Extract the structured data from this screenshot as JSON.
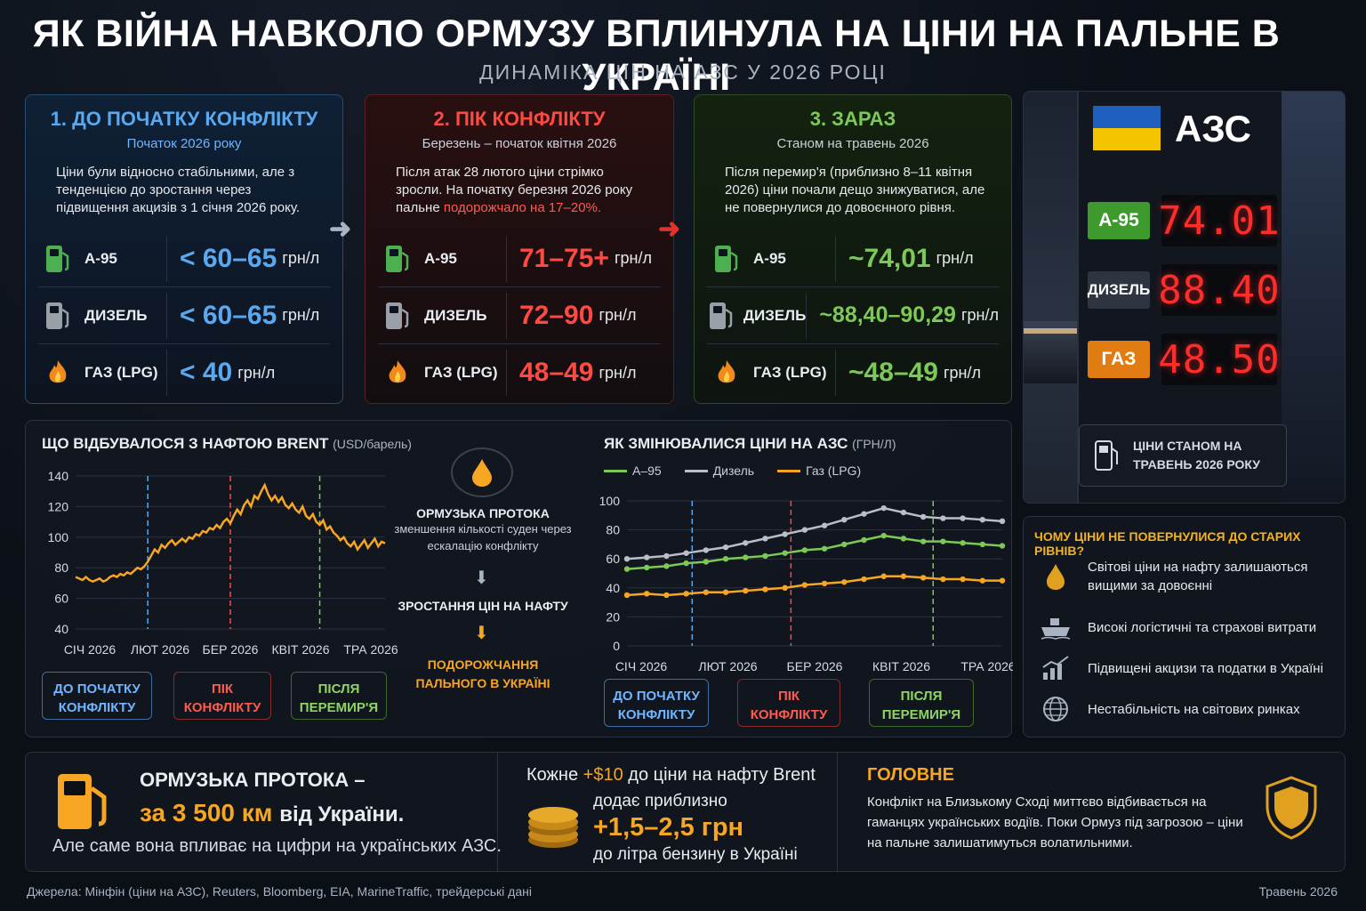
{
  "title": "ЯК ВІЙНА НАВКОЛО ОРМУЗУ ВПЛИНУЛА НА ЦІНИ НА ПАЛЬНЕ В УКРАЇНІ",
  "subtitle": "ДИНАМІКА ЦІН НА АЗС У 2026 РОЦІ",
  "stages": [
    {
      "heading": "1. ДО ПОЧАТКУ КОНФЛІКТУ",
      "period": "Початок 2026 року",
      "desc": "Ціни були відносно стабільними, але з тенденцією до зростання через підвищення акцизів з 1 січня 2026 року.",
      "desc_highlight": "",
      "fuels": [
        {
          "label": "А-95",
          "value": "< 60–65",
          "unit": "грн/л"
        },
        {
          "label": "ДИЗЕЛЬ",
          "value": "< 60–65",
          "unit": "грн/л"
        },
        {
          "label": "ГАЗ (LPG)",
          "value": "< 40",
          "unit": "грн/л"
        }
      ]
    },
    {
      "heading": "2. ПІК КОНФЛІКТУ",
      "period": "Березень – початок квітня 2026",
      "desc": "Після атак 28 лютого ціни стрімко зросли. На початку березня 2026 року пальне",
      "desc_highlight": "подорожчало на 17–20%.",
      "fuels": [
        {
          "label": "А-95",
          "value": "71–75+",
          "unit": "грн/л"
        },
        {
          "label": "ДИЗЕЛЬ",
          "value": "72–90",
          "unit": "грн/л"
        },
        {
          "label": "ГАЗ (LPG)",
          "value": "48–49",
          "unit": "грн/л"
        }
      ]
    },
    {
      "heading": "3. ЗАРАЗ",
      "period": "Станом на травень 2026",
      "desc": "Після перемир'я (приблизно 8–11 квітня 2026) ціни почали дещо знижуватися, але не повернулися до довоєнного рівня.",
      "desc_highlight": "",
      "fuels": [
        {
          "label": "А-95",
          "value": "~74,01",
          "unit": "грн/л"
        },
        {
          "label": "ДИЗЕЛЬ",
          "value": "~88,40–90,29",
          "unit": "грн/л"
        },
        {
          "label": "ГАЗ (LPG)",
          "value": "~48–49",
          "unit": "грн/л"
        }
      ]
    }
  ],
  "brent": {
    "title": "ЩО ВІДБУВАЛОСЯ З НАФТОЮ BRENT",
    "unit": "(USD/барель)"
  },
  "flow": {
    "step1_title": "ОРМУЗЬКА ПРОТОКА",
    "step1_desc": "зменшення кількості суден через ескалацію конфлікту",
    "step2": "ЗРОСТАННЯ ЦІН НА НАФТУ",
    "step3": "ПОДОРОЖЧАННЯ ПАЛЬНОГО В УКРАЇНІ"
  },
  "pump_chart": {
    "title": "ЯК ЗМІНЮВАЛИСЯ ЦІНИ НА АЗС",
    "unit": "(ГРН/Л)"
  },
  "phase_labels": {
    "before": "ДО ПОЧАТКУ КОНФЛІКТУ",
    "peak": "ПІК КОНФЛІКТУ",
    "after": "ПІСЛЯ ПЕРЕМИР'Я"
  },
  "station": {
    "sign": "АЗС",
    "prices": [
      {
        "label": "А-95",
        "value": "74.01",
        "color": "#3f9a2e"
      },
      {
        "label": "ДИЗЕЛЬ",
        "value": "88.40",
        "color": "#2e3440"
      },
      {
        "label": "ГАЗ",
        "value": "48.50",
        "color": "#e07c12"
      }
    ],
    "caption": "ЦІНИ СТАНОМ НА ТРАВЕНЬ 2026 РОКУ"
  },
  "why": {
    "heading": "ЧОМУ ЦІНИ НЕ ПОВЕРНУЛИСЯ ДО СТАРИХ РІВНІВ?",
    "items": [
      {
        "icon": "oil-drop-icon",
        "text": "Світові ціни на нафту залишаються вищими за довоєнні"
      },
      {
        "icon": "ship-icon",
        "text": "Високі логістичні та страхові витрати"
      },
      {
        "icon": "rising-chart-icon",
        "text": "Підвищені акцизи та податки в Україні"
      },
      {
        "icon": "globe-icon",
        "text": "Нестабільність на світових ринках"
      }
    ]
  },
  "bottom": {
    "strait_title": "ОРМУЗЬКА ПРОТОКА –",
    "strait_distance": "за 3 500 км",
    "strait_distance_tail": "від України.",
    "strait_note": "Але саме вона впливає на цифри на українських АЗС.",
    "brent_lead": "Кожне",
    "brent_amount": "+$10",
    "brent_tail": "до ціни на нафту Brent",
    "adds": "додає приблизно",
    "uah": "+1,5–2,5 грн",
    "per_liter": "до літра бензину в Україні",
    "main_heading": "ГОЛОВНЕ",
    "main_text": "Конфлікт на Близькому Сході миттєво відбивається на гаманцях українських водіїв. Поки Ормуз під загрозою – ціни на пальне залишатимуться волатильними."
  },
  "sources": "Джерела: Мінфін (ціни на АЗС), Reuters, Bloomberg, EIA, MarineTraffic, трейдерські дані",
  "date": "Травень 2026",
  "colors": {
    "blue": "#5aa9f0",
    "red": "#ff4a43",
    "green": "#7cc957",
    "orange": "#f6a623",
    "grey": "#b9bec7"
  },
  "chart_data": [
    {
      "type": "line",
      "title": "ЩО ВІДБУВАЛОСЯ З НАФТОЮ BRENT",
      "ylabel": "USD/барель",
      "ylim": [
        40,
        140
      ],
      "yticks": [
        40,
        60,
        80,
        100,
        120,
        140
      ],
      "xticks": [
        "СІЧ 2026",
        "ЛЮТ 2026",
        "БЕР 2026",
        "КВІТ 2026",
        "ТРА 2026"
      ],
      "series": [
        {
          "name": "",
          "color": "#f6a623",
          "x": [
            0,
            0.2,
            0.4,
            0.6,
            0.8,
            1.0,
            1.2,
            1.4,
            1.6,
            1.8,
            2.0,
            2.2,
            2.4,
            2.6,
            2.8,
            3.0,
            3.2,
            3.4,
            3.6,
            3.8,
            4.0,
            4.2,
            4.4,
            4.6,
            4.8,
            5.0,
            5.2,
            5.4,
            5.6,
            5.8,
            6.0,
            6.2,
            6.4,
            6.6,
            6.8,
            7.0,
            7.2,
            7.4,
            7.6,
            7.8,
            8.0,
            8.2,
            8.4,
            8.6,
            8.8,
            9.0,
            9.2,
            9.4,
            9.6,
            9.8,
            10.0,
            10.2,
            10.4,
            10.6,
            10.8,
            11.0,
            11.2,
            11.4,
            11.6,
            11.8,
            12.0,
            12.2,
            12.4,
            12.6,
            12.8,
            13.0,
            13.2,
            13.4,
            13.6,
            13.8,
            14.0,
            14.2,
            14.4,
            14.6,
            14.8,
            15.0,
            15.2,
            15.4,
            15.6,
            15.8,
            16.0,
            16.2,
            16.4,
            16.6,
            16.8,
            17.0,
            17.2,
            17.4,
            17.6,
            17.8,
            18.0
          ],
          "y": [
            74,
            73,
            72,
            74,
            72,
            71,
            72,
            73,
            71,
            72,
            74,
            75,
            74,
            76,
            75,
            77,
            76,
            78,
            80,
            79,
            81,
            84,
            88,
            92,
            90,
            95,
            93,
            96,
            98,
            95,
            97,
            99,
            97,
            100,
            99,
            102,
            101,
            104,
            103,
            106,
            105,
            108,
            106,
            110,
            112,
            109,
            114,
            118,
            115,
            121,
            124,
            120,
            127,
            125,
            130,
            134,
            128,
            124,
            127,
            123,
            126,
            121,
            119,
            122,
            118,
            116,
            120,
            114,
            112,
            115,
            110,
            108,
            111,
            105,
            107,
            103,
            101,
            98,
            100,
            96,
            94,
            97,
            92,
            95,
            98,
            93,
            96,
            99,
            94,
            97,
            96
          ]
        }
      ],
      "phases": [
        {
          "x": 4.2,
          "label": "ДО ПОЧАТКУ КОНФЛІКТУ"
        },
        {
          "x": 9.0,
          "label": "ПІК КОНФЛІКТУ"
        },
        {
          "x": 14.2,
          "label": "ПІСЛЯ ПЕРЕМИР'Я"
        }
      ],
      "grid": true
    },
    {
      "type": "line",
      "title": "ЯК ЗМІНЮВАЛИСЯ ЦІНИ НА АЗС",
      "ylabel": "ГРН/Л",
      "ylim": [
        0,
        100
      ],
      "yticks": [
        0,
        20,
        40,
        60,
        80,
        100
      ],
      "xticks": [
        "СІЧ 2026",
        "ЛЮТ 2026",
        "БЕР 2026",
        "КВІТ 2026",
        "ТРА 2026"
      ],
      "x": [
        0,
        1,
        2,
        3,
        4,
        5,
        6,
        7,
        8,
        9,
        10,
        11,
        12,
        13,
        14,
        15,
        16,
        17,
        18,
        19
      ],
      "series": [
        {
          "name": "А–95",
          "color": "#7cc957",
          "values": [
            53,
            54,
            55,
            57,
            58,
            60,
            61,
            62,
            64,
            66,
            67,
            70,
            73,
            76,
            74,
            72,
            72,
            71,
            70,
            69
          ]
        },
        {
          "name": "Дизель",
          "color": "#b9bec7",
          "values": [
            60,
            61,
            62,
            64,
            66,
            68,
            71,
            74,
            77,
            80,
            83,
            87,
            91,
            95,
            92,
            89,
            88,
            88,
            87,
            86
          ]
        },
        {
          "name": "Газ (LPG)",
          "color": "#f6a623",
          "values": [
            35,
            36,
            35,
            36,
            37,
            37,
            38,
            39,
            40,
            42,
            43,
            44,
            46,
            48,
            48,
            47,
            46,
            46,
            45,
            45
          ]
        }
      ],
      "phases": [
        {
          "x": 3.3,
          "label": "ДО ПОЧАТКУ КОНФЛІКТУ"
        },
        {
          "x": 8.3,
          "label": "ПІК КОНФЛІКТУ"
        },
        {
          "x": 15.5,
          "label": "ПІСЛЯ ПЕРЕМИР'Я"
        }
      ],
      "legend": "top-left",
      "grid": true
    }
  ]
}
